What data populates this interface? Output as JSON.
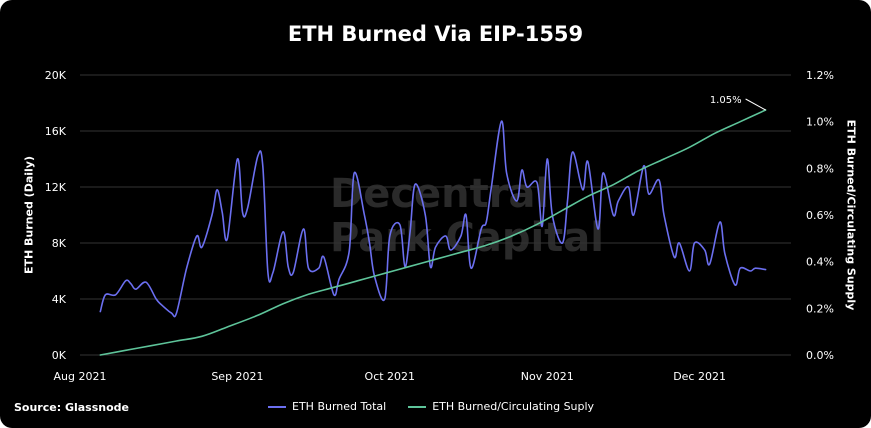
{
  "title": "ETH Burned Via EIP-1559",
  "source": "Source: Glassnode",
  "watermark": [
    "Decentral",
    "Park Capital"
  ],
  "colors": {
    "background": "#000000",
    "burned": "#6b6ff0",
    "supply": "#5ec49a",
    "grid": "#333333"
  },
  "chart_data": {
    "type": "line",
    "title": "ETH Burned Via EIP-1559",
    "ylabel_left": "ETH Burned (Daily)",
    "ylabel_right": "ETH Burned/Circulating Supply",
    "x_tick_labels": [
      "Aug 2021",
      "Sep 2021",
      "Oct 2021",
      "Nov 2021",
      "Dec 2021"
    ],
    "y_left_ticks": [
      "0K",
      "4K",
      "8K",
      "12K",
      "16K",
      "20K"
    ],
    "y_right_ticks": [
      "0.0%",
      "0.2%",
      "0.4%",
      "0.6%",
      "0.8%",
      "1.0%",
      "1.2%"
    ],
    "ylim_left": [
      0,
      20000
    ],
    "ylim_right": [
      0,
      1.2
    ],
    "grid": "horizontal",
    "legend_position": "bottom",
    "annotation": "1.05%",
    "series": [
      {
        "name": "ETH Burned Total",
        "axis": "left",
        "color": "#6b6ff0",
        "x": [
          "2021-08-05",
          "2021-08-06",
          "2021-08-08",
          "2021-08-10",
          "2021-08-11",
          "2021-08-12",
          "2021-08-14",
          "2021-08-16",
          "2021-08-17",
          "2021-08-19",
          "2021-08-20",
          "2021-08-22",
          "2021-08-24",
          "2021-08-25",
          "2021-08-27",
          "2021-08-28",
          "2021-08-29",
          "2021-08-30",
          "2021-09-01",
          "2021-09-02",
          "2021-09-03",
          "2021-09-05",
          "2021-09-06",
          "2021-09-07",
          "2021-09-08",
          "2021-09-10",
          "2021-09-11",
          "2021-09-12",
          "2021-09-14",
          "2021-09-15",
          "2021-09-17",
          "2021-09-18",
          "2021-09-20",
          "2021-09-21",
          "2021-09-23",
          "2021-09-24",
          "2021-09-26",
          "2021-09-27",
          "2021-09-28",
          "2021-09-30",
          "2021-10-01",
          "2021-10-03",
          "2021-10-04",
          "2021-10-05",
          "2021-10-06",
          "2021-10-08",
          "2021-10-09",
          "2021-10-10",
          "2021-10-12",
          "2021-10-13",
          "2021-10-15",
          "2021-10-16",
          "2021-10-17",
          "2021-10-19",
          "2021-10-20",
          "2021-10-21",
          "2021-10-23",
          "2021-10-24",
          "2021-10-26",
          "2021-10-27",
          "2021-10-28",
          "2021-10-30",
          "2021-10-31",
          "2021-11-01",
          "2021-11-02",
          "2021-11-04",
          "2021-11-05",
          "2021-11-06",
          "2021-11-08",
          "2021-11-09",
          "2021-11-11",
          "2021-11-12",
          "2021-11-14",
          "2021-11-15",
          "2021-11-17",
          "2021-11-18",
          "2021-11-20",
          "2021-11-21",
          "2021-11-23",
          "2021-11-24",
          "2021-11-26",
          "2021-11-27",
          "2021-11-29",
          "2021-11-30",
          "2021-12-02",
          "2021-12-03",
          "2021-12-05",
          "2021-12-06",
          "2021-12-08",
          "2021-12-09",
          "2021-12-11",
          "2021-12-12",
          "2021-12-14"
        ],
        "values": [
          3100,
          4300,
          4300,
          5300,
          5100,
          4700,
          5200,
          4000,
          3600,
          3000,
          3000,
          6200,
          8500,
          7700,
          10000,
          11800,
          10200,
          8300,
          14000,
          10200,
          10500,
          14200,
          13500,
          5900,
          5900,
          8800,
          6300,
          5900,
          9000,
          6200,
          6200,
          7000,
          4300,
          5400,
          7400,
          13000,
          10000,
          8000,
          5600,
          4000,
          8500,
          9300,
          6300,
          8800,
          12200,
          10000,
          6300,
          7700,
          8500,
          7500,
          8500,
          10000,
          6200,
          9000,
          9500,
          12000,
          16700,
          13000,
          11000,
          13200,
          12000,
          12300,
          9200,
          14000,
          10000,
          8000,
          11000,
          14500,
          11800,
          13800,
          9000,
          13000,
          10000,
          11000,
          12000,
          10000,
          13500,
          11500,
          12500,
          10000,
          7000,
          8000,
          6000,
          8000,
          7500,
          6500,
          9500,
          7200,
          5000,
          6200,
          6000,
          6200,
          6100
        ]
      },
      {
        "name": "ETH Burned/Circulating Suply",
        "axis": "right",
        "color": "#5ec49a",
        "x": [
          "2021-08-05",
          "2021-08-10",
          "2021-08-15",
          "2021-08-20",
          "2021-08-25",
          "2021-08-30",
          "2021-09-05",
          "2021-09-10",
          "2021-09-15",
          "2021-09-20",
          "2021-09-25",
          "2021-09-30",
          "2021-10-05",
          "2021-10-10",
          "2021-10-15",
          "2021-10-20",
          "2021-10-25",
          "2021-10-30",
          "2021-11-04",
          "2021-11-09",
          "2021-11-14",
          "2021-11-19",
          "2021-11-24",
          "2021-11-29",
          "2021-12-04",
          "2021-12-09",
          "2021-12-14"
        ],
        "values": [
          0.0,
          0.02,
          0.04,
          0.06,
          0.08,
          0.12,
          0.17,
          0.22,
          0.26,
          0.29,
          0.32,
          0.35,
          0.38,
          0.41,
          0.44,
          0.47,
          0.51,
          0.56,
          0.62,
          0.68,
          0.73,
          0.79,
          0.84,
          0.89,
          0.95,
          1.0,
          1.05
        ]
      }
    ]
  }
}
